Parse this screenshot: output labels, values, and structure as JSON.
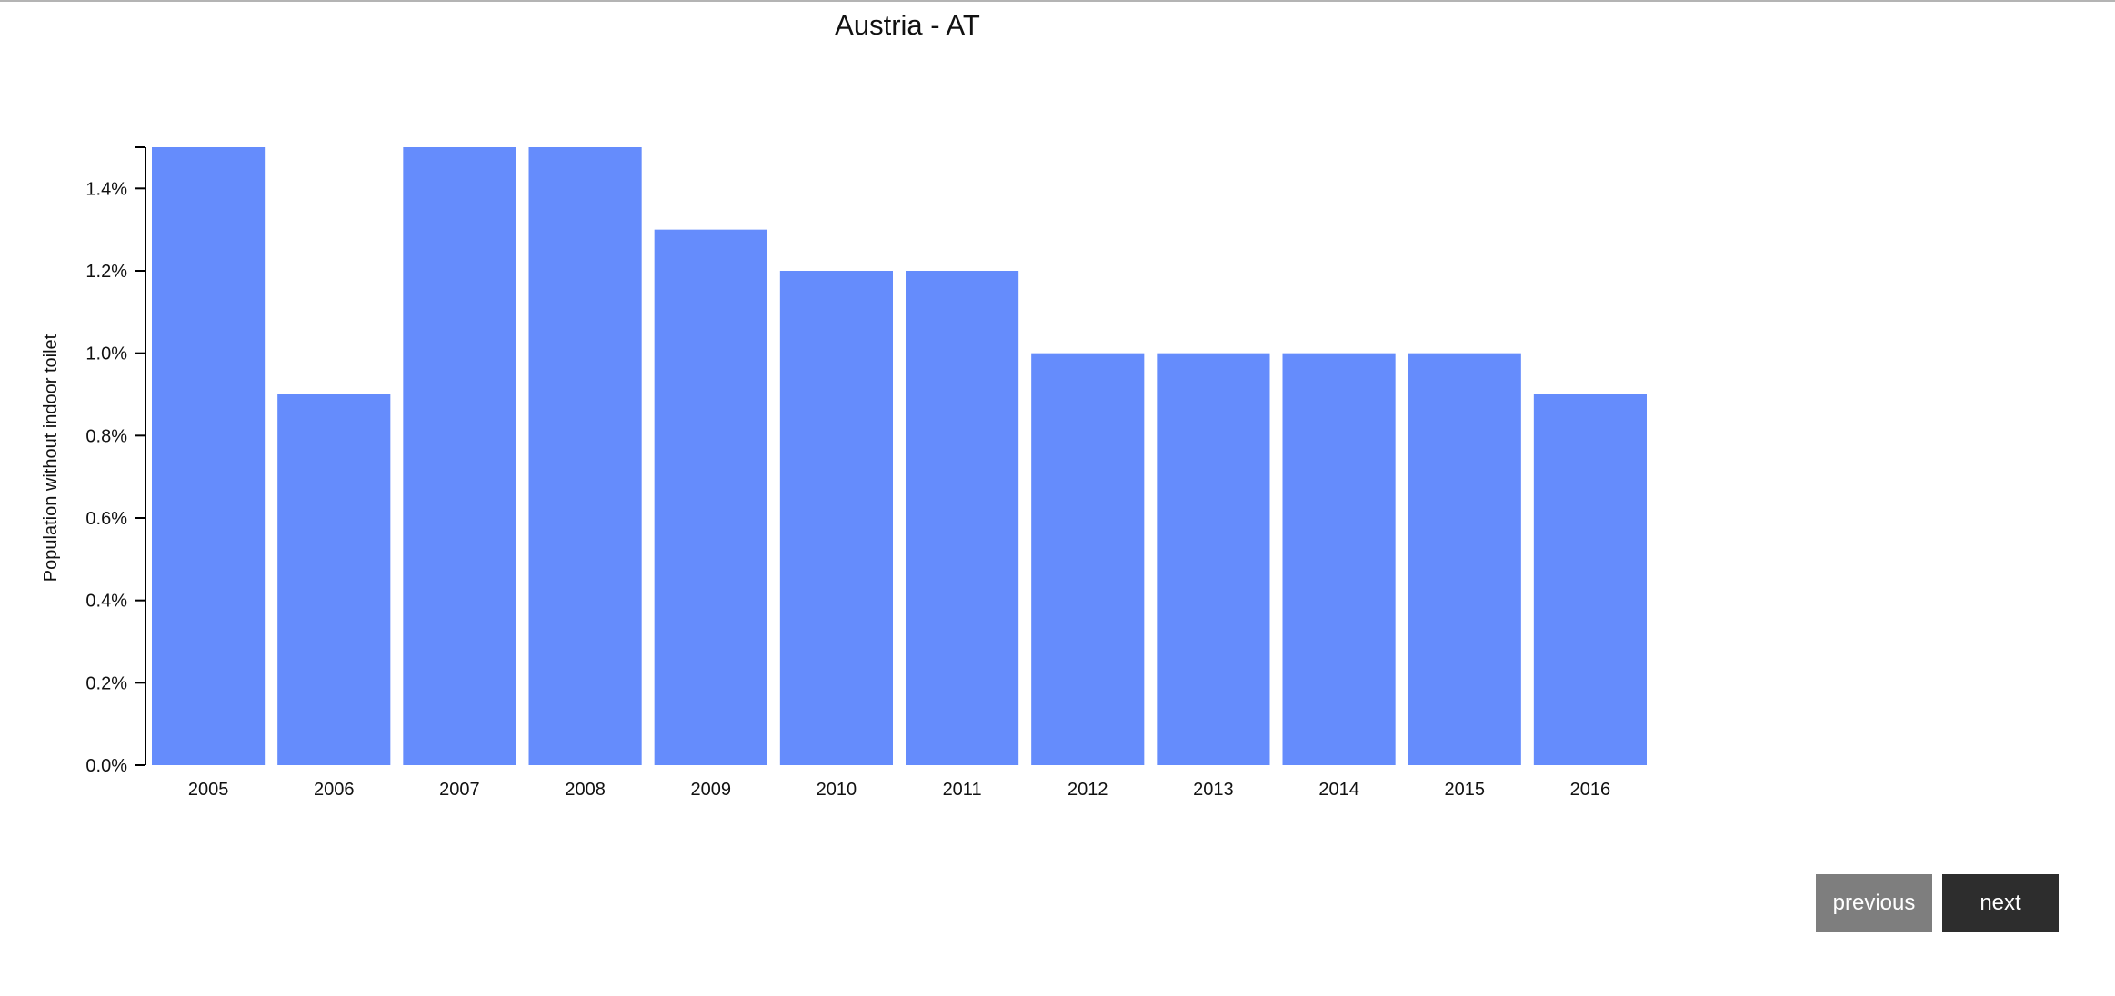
{
  "chart_data": {
    "type": "bar",
    "title": "Austria - AT",
    "xlabel": "",
    "ylabel": "Population without indoor toilet",
    "categories": [
      "2005",
      "2006",
      "2007",
      "2008",
      "2009",
      "2010",
      "2011",
      "2012",
      "2013",
      "2014",
      "2015",
      "2016"
    ],
    "values": [
      1.5,
      0.9,
      1.5,
      1.5,
      1.3,
      1.2,
      1.2,
      1.0,
      1.0,
      1.0,
      1.0,
      0.9
    ],
    "ylim": [
      0,
      1.5
    ],
    "yticks": [
      "0.0%",
      "0.2%",
      "0.4%",
      "0.6%",
      "0.8%",
      "1.0%",
      "1.2%",
      "1.4%"
    ],
    "bar_color": "#658cfc",
    "grid": false,
    "legend": "none"
  },
  "nav": {
    "previous_label": "previous",
    "next_label": "next"
  }
}
